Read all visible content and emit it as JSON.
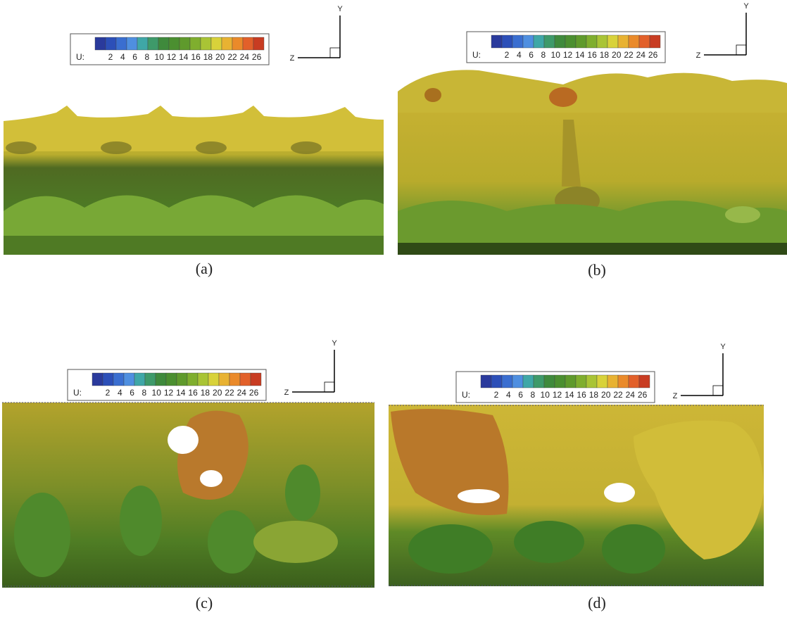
{
  "panels": [
    {
      "label": "(a)",
      "colorbar": {
        "title": "U:",
        "ticks": [
          "2",
          "4",
          "6",
          "8",
          "10",
          "12",
          "14",
          "16",
          "18",
          "20",
          "22",
          "24",
          "26"
        ]
      },
      "axes": {
        "y": "Y",
        "z": "Z"
      }
    },
    {
      "label": "(b)",
      "colorbar": {
        "title": "U:",
        "ticks": [
          "2",
          "4",
          "6",
          "8",
          "10",
          "12",
          "14",
          "16",
          "18",
          "20",
          "22",
          "24",
          "26"
        ]
      },
      "axes": {
        "y": "Y",
        "z": "Z"
      }
    },
    {
      "label": "(c)",
      "colorbar": {
        "title": "U:",
        "ticks": [
          "2",
          "4",
          "6",
          "8",
          "10",
          "12",
          "14",
          "16",
          "18",
          "20",
          "22",
          "24",
          "26"
        ]
      },
      "axes": {
        "y": "Y",
        "z": "Z"
      }
    },
    {
      "label": "(d)",
      "colorbar": {
        "title": "U:",
        "ticks": [
          "2",
          "4",
          "6",
          "8",
          "10",
          "12",
          "14",
          "16",
          "18",
          "20",
          "22",
          "24",
          "26"
        ]
      },
      "axes": {
        "y": "Y",
        "z": "Z"
      }
    }
  ]
}
